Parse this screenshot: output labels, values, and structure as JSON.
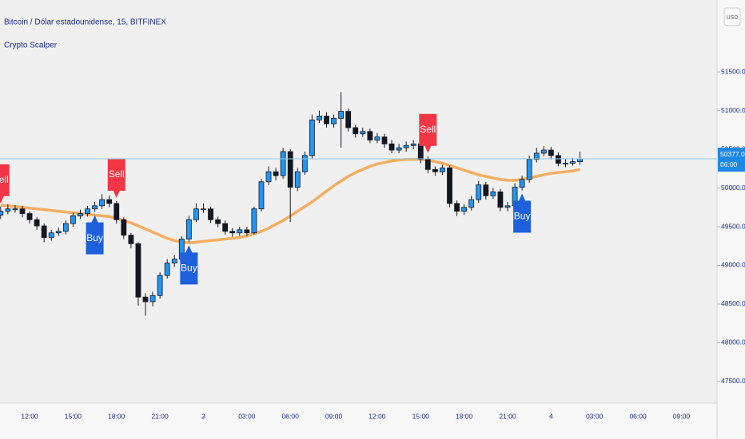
{
  "chart_data": {
    "type": "candlestick",
    "title": "Bitcoin / Dólar estadounidense, 15, BITFINEX",
    "subtitle": "Crypto Scalper",
    "currency": "USD",
    "price_label": "50377.0",
    "countdown": "06:00",
    "up_color": "#2196f3",
    "down_color": "#131722",
    "ma_color": "#f5a650",
    "price_line_color": "#90c8f0",
    "price_tag_color": "#1e88e5",
    "ylim": [
      47220,
      52430
    ],
    "yticks": [
      {
        "value": 47500,
        "label": "47500.0"
      },
      {
        "value": 48000,
        "label": "48000.0"
      },
      {
        "value": 48500,
        "label": "48500.0"
      },
      {
        "value": 49000,
        "label": "49000.0"
      },
      {
        "value": 49500,
        "label": "49500.0"
      },
      {
        "value": 50000,
        "label": "50000.0"
      },
      {
        "value": 50500,
        "label": "50500.0"
      },
      {
        "value": 51000,
        "label": "51000.0"
      },
      {
        "value": 51500,
        "label": "51500.0"
      }
    ],
    "categories": [
      null,
      null,
      null,
      null,
      "12:00",
      null,
      null,
      null,
      null,
      null,
      "15:00",
      null,
      null,
      null,
      null,
      null,
      "18:00",
      null,
      null,
      null,
      null,
      null,
      "21:00",
      null,
      null,
      null,
      null,
      null,
      "3",
      null,
      null,
      null,
      null,
      null,
      "03:00",
      null,
      null,
      null,
      null,
      null,
      "06:00",
      null,
      null,
      null,
      null,
      null,
      "09:00",
      null,
      null,
      null,
      null,
      null,
      "12:00",
      null,
      null,
      null,
      null,
      null,
      "15:00",
      null,
      null,
      null,
      null,
      null,
      "18:00",
      null,
      null,
      null,
      null,
      null,
      "21:00",
      null,
      null,
      null,
      null,
      null,
      "4",
      null,
      null,
      null,
      null,
      null,
      "03:00",
      null,
      null,
      null,
      null,
      null,
      "06:00",
      null,
      null,
      null,
      null,
      null,
      "09:00",
      null,
      null,
      null,
      null
    ],
    "open": [
      49650,
      49700,
      49730,
      49730,
      49670,
      49590,
      49510,
      49360,
      49420,
      49440,
      49540,
      49640,
      49670,
      49730,
      49770,
      49850,
      49800,
      49590,
      49390,
      49280,
      48590,
      48530,
      48610,
      48870,
      49030,
      49080,
      49340,
      49590,
      49730,
      49730,
      49590,
      49540,
      49440,
      49420,
      49460,
      49420,
      49730,
      50080,
      50210,
      50160,
      50470,
      50010,
      50210,
      50420,
      50880,
      50930,
      50830,
      50900,
      50990,
      50780,
      50700,
      50730,
      50620,
      50660,
      50570,
      50490,
      50520,
      50550,
      50570,
      50370,
      50240,
      50210,
      50260,
      49800,
      49700,
      49750,
      49850,
      50040,
      49900,
      49950,
      49750,
      49770,
      50010,
      50110,
      50370,
      50450,
      50490,
      50420,
      50320,
      50320,
      50340,
      null,
      null,
      null,
      null,
      null,
      null,
      null,
      null,
      null,
      null,
      null,
      null,
      null,
      null,
      null,
      null,
      null,
      null
    ],
    "high": [
      49760,
      49790,
      49780,
      49770,
      49700,
      49620,
      49540,
      49460,
      49490,
      49580,
      49680,
      49720,
      49770,
      49820,
      49920,
      49900,
      49830,
      49620,
      49420,
      49300,
      48640,
      48660,
      48910,
      49080,
      49130,
      49380,
      49640,
      49800,
      49800,
      49760,
      49630,
      49580,
      49480,
      49500,
      49500,
      49760,
      50120,
      50280,
      50260,
      50520,
      50500,
      50260,
      50470,
      50950,
      51000,
      50980,
      50950,
      51240,
      51030,
      50820,
      50780,
      50770,
      50710,
      50700,
      50620,
      50570,
      50600,
      50620,
      50610,
      50410,
      50280,
      50300,
      50290,
      49840,
      49790,
      49900,
      50090,
      50080,
      50000,
      49990,
      49820,
      50060,
      50160,
      50420,
      50520,
      50540,
      50530,
      50460,
      50370,
      50390,
      50470,
      null,
      null,
      null,
      null,
      null,
      null,
      null,
      null,
      null,
      null,
      null,
      null,
      null,
      null,
      null,
      null,
      null,
      null
    ],
    "low": [
      49600,
      49660,
      49680,
      49620,
      49540,
      49460,
      49300,
      49320,
      49380,
      49400,
      49500,
      49600,
      49630,
      49690,
      49730,
      49750,
      49540,
      49340,
      49220,
      48480,
      48350,
      48470,
      48570,
      48830,
      48980,
      49040,
      49300,
      49560,
      49680,
      49550,
      49490,
      49400,
      49370,
      49380,
      49380,
      49400,
      49700,
      50040,
      50100,
      50120,
      49560,
      49960,
      50170,
      50380,
      50840,
      50780,
      50780,
      50520,
      50730,
      50650,
      50660,
      50580,
      50580,
      50520,
      50450,
      50450,
      50470,
      50500,
      50320,
      50190,
      50160,
      50170,
      49750,
      49640,
      49650,
      49710,
      49810,
      49850,
      49860,
      49700,
      49700,
      49730,
      49970,
      50070,
      50330,
      50410,
      50370,
      50280,
      50270,
      50290,
      50300,
      null,
      null,
      null,
      null,
      null,
      null,
      null,
      null,
      null,
      null,
      null,
      null,
      null,
      null,
      null,
      null,
      null,
      null
    ],
    "close": [
      49700,
      49730,
      49730,
      49670,
      49590,
      49510,
      49360,
      49420,
      49440,
      49540,
      49640,
      49670,
      49730,
      49770,
      49850,
      49800,
      49590,
      49390,
      49280,
      48590,
      48530,
      48610,
      48870,
      49030,
      49080,
      49340,
      49590,
      49730,
      49730,
      49590,
      49540,
      49440,
      49420,
      49460,
      49420,
      49730,
      50080,
      50210,
      50160,
      50470,
      50010,
      50210,
      50420,
      50880,
      50930,
      50830,
      50900,
      50990,
      50780,
      50700,
      50730,
      50620,
      50660,
      50570,
      50490,
      50520,
      50550,
      50570,
      50370,
      50240,
      50210,
      50260,
      49800,
      49700,
      49750,
      49850,
      50040,
      49900,
      49950,
      49750,
      49770,
      50010,
      50110,
      50370,
      50450,
      50490,
      50420,
      50320,
      50320,
      50340,
      50377,
      null,
      null,
      null,
      null,
      null,
      null,
      null,
      null,
      null,
      null,
      null,
      null,
      null,
      null,
      null,
      null,
      null,
      null
    ],
    "ma": [
      49780,
      49770,
      49760,
      49750,
      49740,
      49730,
      49720,
      49710,
      49700,
      49690,
      49680,
      49670,
      49660,
      49650,
      49640,
      49630,
      49610,
      49580,
      49550,
      49510,
      49470,
      49430,
      49390,
      49350,
      49320,
      49300,
      49290,
      49300,
      49310,
      49320,
      49330,
      49340,
      49350,
      49360,
      49380,
      49410,
      49440,
      49480,
      49530,
      49580,
      49640,
      49700,
      49760,
      49820,
      49890,
      49960,
      50030,
      50090,
      50150,
      50200,
      50240,
      50280,
      50310,
      50330,
      50350,
      50360,
      50370,
      50370,
      50370,
      50360,
      50340,
      50320,
      50290,
      50260,
      50230,
      50200,
      50170,
      50150,
      50130,
      50110,
      50100,
      50100,
      50110,
      50130,
      50150,
      50170,
      50190,
      50200,
      50210,
      50220,
      50240,
      null,
      null,
      null,
      null,
      null,
      null,
      null,
      null,
      null,
      null,
      null,
      null,
      null,
      null,
      null,
      null,
      null,
      null
    ],
    "signals": [
      {
        "text": "Sell",
        "color": "#f23645",
        "side": "above"
      },
      null,
      null,
      null,
      null,
      null,
      null,
      null,
      null,
      null,
      null,
      null,
      null,
      {
        "text": "Buy",
        "color": "#1e5fdc",
        "side": "below"
      },
      null,
      null,
      {
        "text": "Sell",
        "color": "#f23645",
        "side": "above"
      },
      null,
      null,
      null,
      null,
      null,
      null,
      null,
      null,
      null,
      {
        "text": "Buy",
        "color": "#1e5fdc",
        "side": "below"
      },
      null,
      null,
      null,
      null,
      null,
      null,
      null,
      null,
      null,
      null,
      null,
      null,
      null,
      null,
      null,
      null,
      null,
      null,
      null,
      null,
      null,
      null,
      null,
      null,
      null,
      null,
      null,
      null,
      null,
      null,
      null,
      null,
      {
        "text": "Sell",
        "color": "#f23645",
        "side": "above"
      },
      null,
      null,
      null,
      null,
      null,
      null,
      null,
      null,
      null,
      null,
      null,
      null,
      {
        "text": "Buy",
        "color": "#1e5fdc",
        "side": "below"
      },
      null,
      null,
      null,
      null,
      null,
      null,
      null,
      null,
      null,
      null,
      null,
      null,
      null,
      null,
      null,
      null,
      null,
      null,
      null,
      null,
      null,
      null,
      null,
      null,
      null,
      null
    ]
  }
}
